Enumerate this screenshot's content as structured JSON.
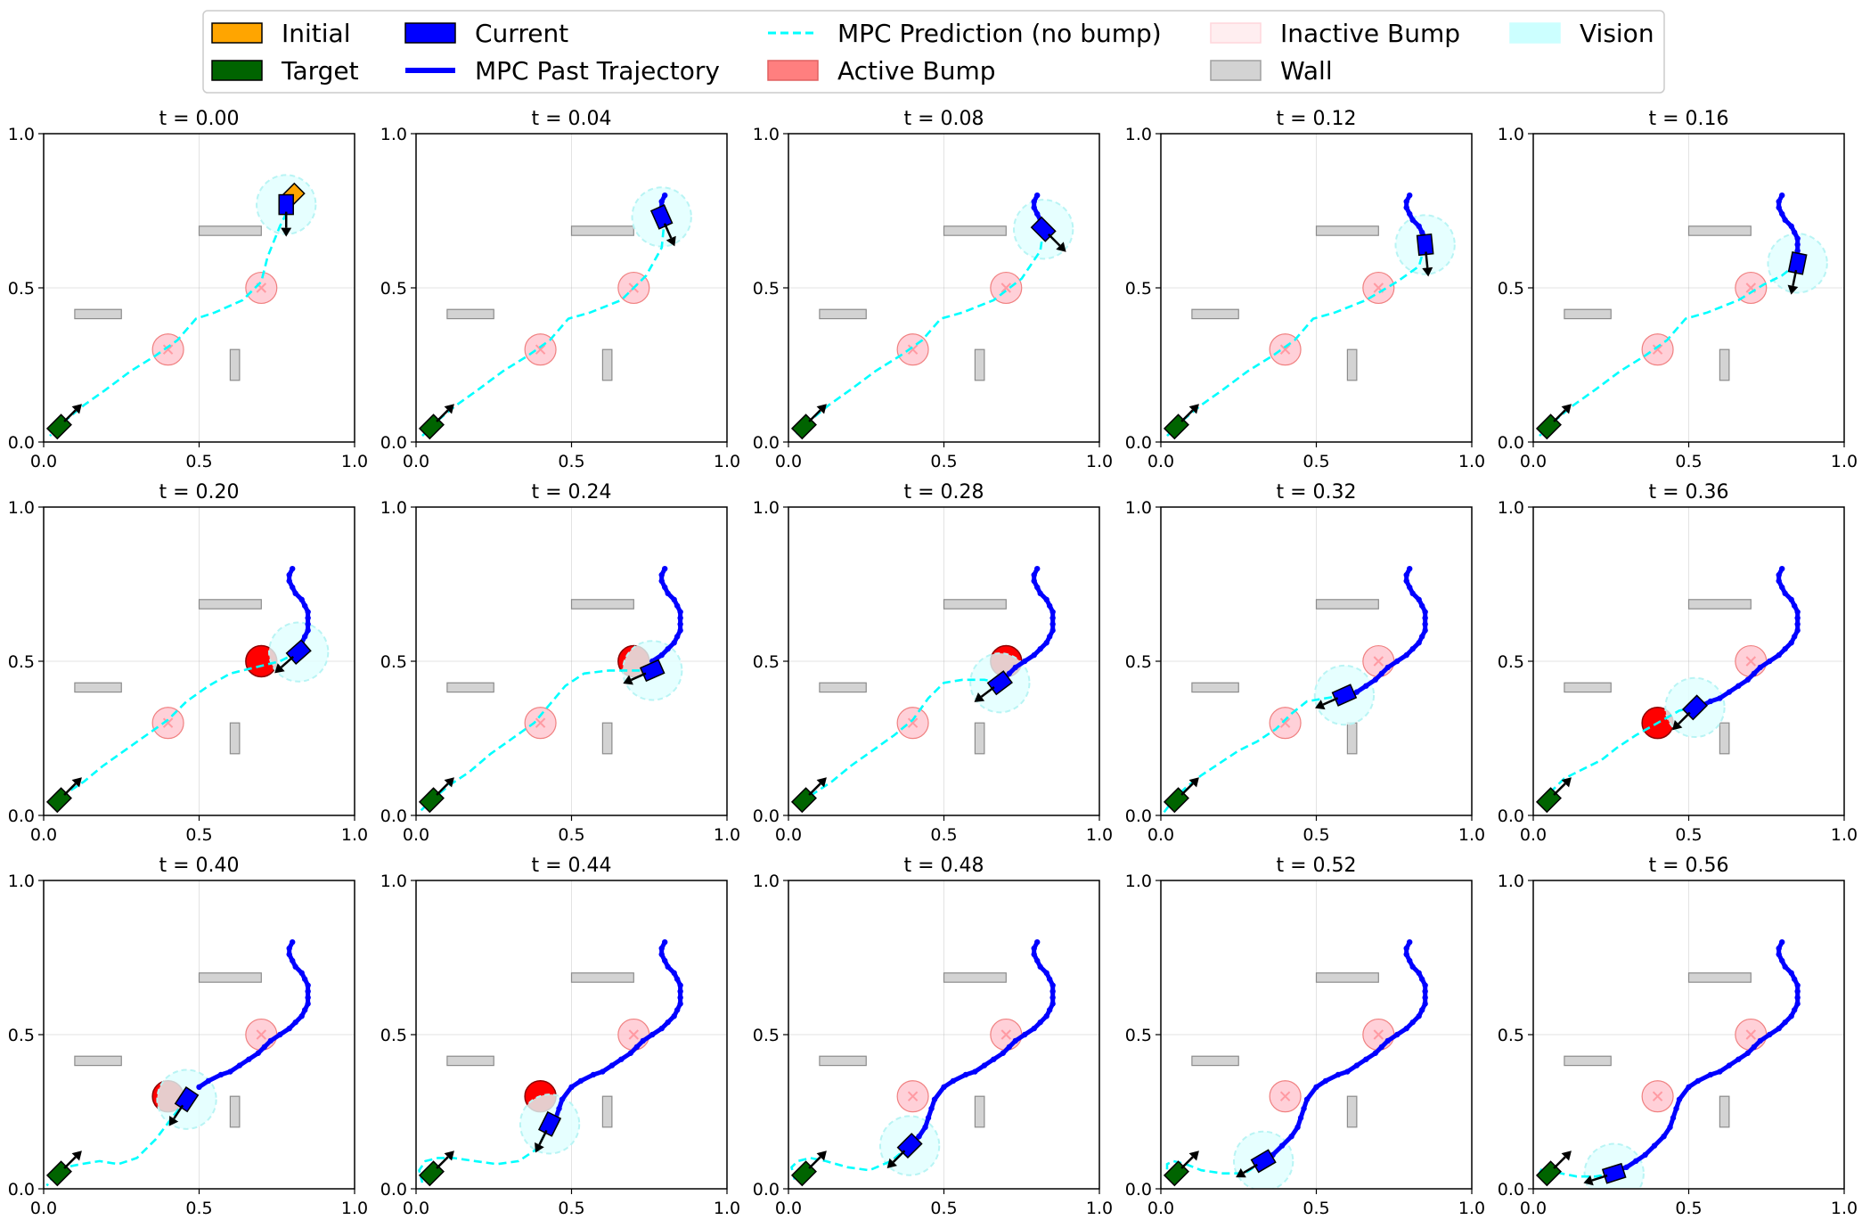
{
  "legend": {
    "placement": "top-center",
    "items": [
      {
        "key": "initial",
        "label": "Initial",
        "kind": "patch",
        "color": "#ffa500",
        "edge": "#000000"
      },
      {
        "key": "target",
        "label": "Target",
        "kind": "patch",
        "color": "#006400",
        "edge": "#000000"
      },
      {
        "key": "current",
        "label": "Current",
        "kind": "patch",
        "color": "#0000ff",
        "edge": "#000000"
      },
      {
        "key": "past",
        "label": "MPC Past Trajectory",
        "kind": "line",
        "color": "#0000ff"
      },
      {
        "key": "pred",
        "label": "MPC Prediction (no bump)",
        "kind": "dashed",
        "color": "#00ffff"
      },
      {
        "key": "active",
        "label": "Active Bump",
        "kind": "patch",
        "color": "#ff7f7f",
        "edge": "#e06060"
      },
      {
        "key": "inactive",
        "label": "Inactive Bump",
        "kind": "patch",
        "color": "#ffeef0",
        "edge": "#ffd6dc"
      },
      {
        "key": "wall",
        "label": "Wall",
        "kind": "patch",
        "color": "#d3d3d3",
        "edge": "#a0a0a0"
      },
      {
        "key": "vision",
        "label": "Vision",
        "kind": "patch",
        "color": "#ccffff",
        "edge": "#ccffff"
      }
    ]
  },
  "colors": {
    "initial": "#ffa500",
    "target": "#006400",
    "current": "#0000ff",
    "past": "#0000ff",
    "prediction": "#00ffff",
    "bump_active": "#ff0000",
    "bump_inactive": "#ffc0cb",
    "wall": "#d3d3d3",
    "vision": "#e0ffff"
  },
  "chart_data": {
    "type": "line",
    "grid": true,
    "layout": {
      "rows": 3,
      "cols": 5
    },
    "xlim": [
      0,
      1
    ],
    "ylim": [
      0,
      1
    ],
    "xticks": [
      0.0,
      0.5,
      1.0
    ],
    "yticks": [
      0.0,
      0.5,
      1.0
    ],
    "xtick_labels": [
      "0.0",
      "0.5",
      "1.0"
    ],
    "ytick_labels": [
      "0.0",
      "0.5",
      "1.0"
    ],
    "initial_pose": {
      "x": 0.8,
      "y": 0.8,
      "size": 0.045
    },
    "target_pose": {
      "x": 0.05,
      "y": 0.05,
      "size": 0.045
    },
    "bumps": [
      {
        "x": 0.4,
        "y": 0.3,
        "r": 0.05
      },
      {
        "x": 0.7,
        "y": 0.5,
        "r": 0.05
      }
    ],
    "walls": [
      {
        "x0": 0.1,
        "y0": 0.4,
        "x1": 0.25,
        "y1": 0.43
      },
      {
        "x0": 0.5,
        "y0": 0.67,
        "x1": 0.7,
        "y1": 0.7
      },
      {
        "x0": 0.6,
        "y0": 0.2,
        "x1": 0.63,
        "y1": 0.3
      }
    ],
    "vision_radius": 0.095,
    "full_trajectory": [
      [
        0.8,
        0.8
      ],
      [
        0.79,
        0.78
      ],
      [
        0.79,
        0.76
      ],
      [
        0.8,
        0.74
      ],
      [
        0.81,
        0.72
      ],
      [
        0.83,
        0.7
      ],
      [
        0.84,
        0.68
      ],
      [
        0.85,
        0.66
      ],
      [
        0.85,
        0.64
      ],
      [
        0.85,
        0.62
      ],
      [
        0.85,
        0.6
      ],
      [
        0.84,
        0.58
      ],
      [
        0.83,
        0.56
      ],
      [
        0.81,
        0.54
      ],
      [
        0.79,
        0.52
      ],
      [
        0.76,
        0.5
      ],
      [
        0.73,
        0.48
      ],
      [
        0.71,
        0.46
      ],
      [
        0.69,
        0.44
      ],
      [
        0.66,
        0.42
      ],
      [
        0.63,
        0.4
      ],
      [
        0.6,
        0.38
      ],
      [
        0.57,
        0.37
      ],
      [
        0.53,
        0.35
      ],
      [
        0.5,
        0.33
      ],
      [
        0.47,
        0.29
      ],
      [
        0.46,
        0.26
      ],
      [
        0.45,
        0.23
      ],
      [
        0.44,
        0.2
      ],
      [
        0.42,
        0.17
      ],
      [
        0.39,
        0.14
      ],
      [
        0.36,
        0.11
      ],
      [
        0.33,
        0.09
      ],
      [
        0.3,
        0.07
      ],
      [
        0.27,
        0.06
      ],
      [
        0.25,
        0.05
      ]
    ],
    "frames": [
      {
        "title": "t = 0.00",
        "past_len": 1,
        "pos": [
          0.78,
          0.77
        ],
        "dir": [
          0.0,
          -1.0
        ],
        "active": [],
        "pred": [
          [
            0.8,
            0.78
          ],
          [
            0.76,
            0.7
          ],
          [
            0.72,
            0.6
          ],
          [
            0.7,
            0.52
          ],
          [
            0.64,
            0.46
          ],
          [
            0.55,
            0.42
          ],
          [
            0.49,
            0.4
          ],
          [
            0.43,
            0.33
          ],
          [
            0.36,
            0.28
          ],
          [
            0.28,
            0.23
          ],
          [
            0.2,
            0.17
          ],
          [
            0.13,
            0.12
          ],
          [
            0.07,
            0.07
          ],
          [
            0.02,
            0.02
          ]
        ]
      },
      {
        "title": "t = 0.04",
        "past_len": 3,
        "pos": [
          0.79,
          0.73
        ],
        "dir": [
          0.4,
          -0.9
        ],
        "active": [],
        "pred": [
          [
            0.8,
            0.73
          ],
          [
            0.79,
            0.63
          ],
          [
            0.74,
            0.54
          ],
          [
            0.66,
            0.46
          ],
          [
            0.56,
            0.42
          ],
          [
            0.49,
            0.4
          ],
          [
            0.43,
            0.33
          ],
          [
            0.36,
            0.28
          ],
          [
            0.28,
            0.23
          ],
          [
            0.2,
            0.17
          ],
          [
            0.13,
            0.12
          ],
          [
            0.07,
            0.07
          ],
          [
            0.02,
            0.02
          ]
        ]
      },
      {
        "title": "t = 0.08",
        "past_len": 6,
        "pos": [
          0.82,
          0.69
        ],
        "dir": [
          0.7,
          -0.7
        ],
        "active": [],
        "pred": [
          [
            0.82,
            0.69
          ],
          [
            0.81,
            0.62
          ],
          [
            0.75,
            0.53
          ],
          [
            0.66,
            0.46
          ],
          [
            0.56,
            0.42
          ],
          [
            0.49,
            0.4
          ],
          [
            0.43,
            0.33
          ],
          [
            0.36,
            0.28
          ],
          [
            0.28,
            0.23
          ],
          [
            0.2,
            0.17
          ],
          [
            0.13,
            0.12
          ],
          [
            0.07,
            0.07
          ],
          [
            0.02,
            0.02
          ]
        ]
      },
      {
        "title": "t = 0.12",
        "past_len": 9,
        "pos": [
          0.85,
          0.64
        ],
        "dir": [
          0.1,
          -1.0
        ],
        "active": [],
        "pred": [
          [
            0.85,
            0.64
          ],
          [
            0.83,
            0.57
          ],
          [
            0.76,
            0.52
          ],
          [
            0.66,
            0.46
          ],
          [
            0.56,
            0.42
          ],
          [
            0.49,
            0.4
          ],
          [
            0.43,
            0.33
          ],
          [
            0.36,
            0.28
          ],
          [
            0.28,
            0.23
          ],
          [
            0.2,
            0.17
          ],
          [
            0.13,
            0.12
          ],
          [
            0.07,
            0.07
          ],
          [
            0.02,
            0.02
          ]
        ]
      },
      {
        "title": "t = 0.16",
        "past_len": 11,
        "pos": [
          0.85,
          0.58
        ],
        "dir": [
          -0.2,
          -0.98
        ],
        "active": [],
        "pred": [
          [
            0.85,
            0.58
          ],
          [
            0.8,
            0.54
          ],
          [
            0.74,
            0.51
          ],
          [
            0.66,
            0.46
          ],
          [
            0.56,
            0.42
          ],
          [
            0.49,
            0.4
          ],
          [
            0.43,
            0.33
          ],
          [
            0.36,
            0.28
          ],
          [
            0.28,
            0.23
          ],
          [
            0.2,
            0.17
          ],
          [
            0.13,
            0.12
          ],
          [
            0.07,
            0.07
          ],
          [
            0.02,
            0.02
          ]
        ]
      },
      {
        "title": "t = 0.20",
        "past_len": 14,
        "pos": [
          0.82,
          0.53
        ],
        "dir": [
          -0.75,
          -0.66
        ],
        "active": [
          1
        ],
        "pred": [
          [
            0.82,
            0.53
          ],
          [
            0.76,
            0.5
          ],
          [
            0.68,
            0.48
          ],
          [
            0.6,
            0.46
          ],
          [
            0.53,
            0.42
          ],
          [
            0.46,
            0.37
          ],
          [
            0.4,
            0.31
          ],
          [
            0.33,
            0.26
          ],
          [
            0.26,
            0.21
          ],
          [
            0.19,
            0.16
          ],
          [
            0.13,
            0.11
          ],
          [
            0.07,
            0.07
          ],
          [
            0.02,
            0.02
          ]
        ]
      },
      {
        "title": "t = 0.24",
        "past_len": 16,
        "pos": [
          0.76,
          0.47
        ],
        "dir": [
          -0.9,
          -0.4
        ],
        "active": [
          1
        ],
        "pred": [
          [
            0.76,
            0.47
          ],
          [
            0.7,
            0.47
          ],
          [
            0.62,
            0.47
          ],
          [
            0.54,
            0.46
          ],
          [
            0.48,
            0.42
          ],
          [
            0.43,
            0.36
          ],
          [
            0.38,
            0.3
          ],
          [
            0.31,
            0.25
          ],
          [
            0.24,
            0.2
          ],
          [
            0.17,
            0.14
          ],
          [
            0.11,
            0.1
          ],
          [
            0.05,
            0.05
          ],
          [
            0.01,
            0.01
          ]
        ]
      },
      {
        "title": "t = 0.28",
        "past_len": 19,
        "pos": [
          0.68,
          0.43
        ],
        "dir": [
          -0.8,
          -0.6
        ],
        "active": [
          1
        ],
        "pred": [
          [
            0.68,
            0.43
          ],
          [
            0.63,
            0.44
          ],
          [
            0.56,
            0.44
          ],
          [
            0.5,
            0.43
          ],
          [
            0.45,
            0.38
          ],
          [
            0.4,
            0.31
          ],
          [
            0.34,
            0.26
          ],
          [
            0.27,
            0.21
          ],
          [
            0.2,
            0.16
          ],
          [
            0.14,
            0.11
          ],
          [
            0.08,
            0.07
          ],
          [
            0.03,
            0.03
          ]
        ]
      },
      {
        "title": "t = 0.32",
        "past_len": 22,
        "pos": [
          0.59,
          0.39
        ],
        "dir": [
          -0.9,
          -0.4
        ],
        "active": [],
        "pred": [
          [
            0.59,
            0.39
          ],
          [
            0.53,
            0.38
          ],
          [
            0.47,
            0.37
          ],
          [
            0.42,
            0.33
          ],
          [
            0.37,
            0.28
          ],
          [
            0.31,
            0.24
          ],
          [
            0.25,
            0.21
          ],
          [
            0.19,
            0.17
          ],
          [
            0.13,
            0.13
          ],
          [
            0.08,
            0.09
          ],
          [
            0.04,
            0.05
          ],
          [
            0.01,
            0.01
          ]
        ]
      },
      {
        "title": "t = 0.36",
        "past_len": 24,
        "pos": [
          0.52,
          0.35
        ],
        "dir": [
          -0.7,
          -0.7
        ],
        "active": [
          0
        ],
        "pred": [
          [
            0.52,
            0.35
          ],
          [
            0.47,
            0.34
          ],
          [
            0.4,
            0.3
          ],
          [
            0.33,
            0.26
          ],
          [
            0.27,
            0.22
          ],
          [
            0.22,
            0.18
          ],
          [
            0.16,
            0.15
          ],
          [
            0.1,
            0.12
          ],
          [
            0.06,
            0.08
          ],
          [
            0.04,
            0.06
          ]
        ]
      },
      {
        "title": "t = 0.40",
        "past_len": 25,
        "pos": [
          0.46,
          0.29
        ],
        "dir": [
          -0.55,
          -0.83
        ],
        "active": [
          0
        ],
        "pred": [
          [
            0.46,
            0.29
          ],
          [
            0.42,
            0.24
          ],
          [
            0.36,
            0.16
          ],
          [
            0.3,
            0.1
          ],
          [
            0.24,
            0.08
          ],
          [
            0.18,
            0.09
          ],
          [
            0.12,
            0.08
          ],
          [
            0.07,
            0.07
          ],
          [
            0.03,
            0.04
          ],
          [
            0.01,
            0.01
          ]
        ]
      },
      {
        "title": "t = 0.44",
        "past_len": 28,
        "pos": [
          0.43,
          0.21
        ],
        "dir": [
          -0.45,
          -0.9
        ],
        "active": [
          0
        ],
        "pred": [
          [
            0.43,
            0.21
          ],
          [
            0.39,
            0.13
          ],
          [
            0.33,
            0.09
          ],
          [
            0.26,
            0.08
          ],
          [
            0.19,
            0.09
          ],
          [
            0.12,
            0.1
          ],
          [
            0.07,
            0.1
          ],
          [
            0.03,
            0.09
          ],
          [
            0.01,
            0.06
          ],
          [
            0.02,
            0.02
          ]
        ]
      },
      {
        "title": "t = 0.48",
        "past_len": 31,
        "pos": [
          0.39,
          0.14
        ],
        "dir": [
          -0.7,
          -0.7
        ],
        "active": [],
        "pred": [
          [
            0.39,
            0.14
          ],
          [
            0.33,
            0.09
          ],
          [
            0.26,
            0.06
          ],
          [
            0.19,
            0.07
          ],
          [
            0.12,
            0.09
          ],
          [
            0.07,
            0.1
          ],
          [
            0.03,
            0.09
          ],
          [
            0.01,
            0.07
          ],
          [
            0.02,
            0.03
          ]
        ]
      },
      {
        "title": "t = 0.52",
        "past_len": 33,
        "pos": [
          0.33,
          0.09
        ],
        "dir": [
          -0.85,
          -0.5
        ],
        "active": [],
        "pred": [
          [
            0.33,
            0.09
          ],
          [
            0.27,
            0.05
          ],
          [
            0.2,
            0.05
          ],
          [
            0.13,
            0.06
          ],
          [
            0.08,
            0.08
          ],
          [
            0.04,
            0.09
          ],
          [
            0.02,
            0.08
          ],
          [
            0.02,
            0.05
          ]
        ]
      },
      {
        "title": "t = 0.56",
        "past_len": 36,
        "pos": [
          0.26,
          0.05
        ],
        "dir": [
          -0.95,
          -0.3
        ],
        "active": [],
        "pred": [
          [
            0.26,
            0.05
          ],
          [
            0.2,
            0.04
          ],
          [
            0.14,
            0.04
          ],
          [
            0.09,
            0.05
          ],
          [
            0.05,
            0.06
          ],
          [
            0.03,
            0.07
          ],
          [
            0.02,
            0.05
          ]
        ]
      }
    ]
  }
}
